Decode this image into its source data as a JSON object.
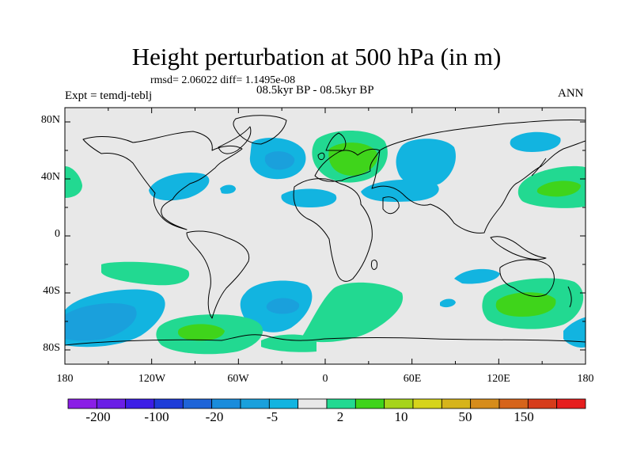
{
  "title": "Height perturbation at 500 hPa (in m)",
  "stats_line": "rmsd= 2.06022  diff= 1.1495e-08",
  "subtitle": "08.5kyr BP - 08.5kyr BP",
  "experiment_label": "Expt = temdj-teblj",
  "season": "ANN",
  "colors": {
    "ocean_background": "#e8e8e8",
    "light_negative": "#12b4e0",
    "mid_negative": "#1aa0dc",
    "light_positive": "#22d991",
    "mid_positive": "#3fd41b"
  },
  "chart_data": {
    "type": "heatmap",
    "variable": "500 hPa height perturbation",
    "units": "m",
    "projection": "cylindrical equidistant",
    "lon_range": [
      -180,
      180
    ],
    "lat_range": [
      -90,
      90
    ],
    "x_ticks": [
      "180",
      "120W",
      "60W",
      "0",
      "60E",
      "120E",
      "180"
    ],
    "y_ticks": [
      "80N",
      "40N",
      "0",
      "40S",
      "80S"
    ],
    "colorbar": {
      "labels": [
        "-200",
        "-100",
        "-20",
        "-5",
        "2",
        "10",
        "50",
        "150"
      ],
      "colors": [
        "#8a1ee6",
        "#6a1ee6",
        "#3c1ee6",
        "#1e3cd8",
        "#1e64d8",
        "#1a8cdc",
        "#1aa0dc",
        "#12b4e0",
        "#e8e8e8",
        "#22d991",
        "#3fd41b",
        "#a6d41b",
        "#d6d41b",
        "#d6b41b",
        "#d68c1b",
        "#d6641b",
        "#d63c1b",
        "#e61e1e"
      ]
    },
    "anomalies": [
      {
        "name": "north-atlantic-low",
        "lon": -40,
        "lat": 48,
        "level": "-5"
      },
      {
        "name": "labrador-low",
        "lon": -75,
        "lat": 35,
        "level": "-5"
      },
      {
        "name": "west-atlantic-small-low",
        "lon": -60,
        "lat": 35,
        "level": "-5"
      },
      {
        "name": "subtropical-atlantic-low",
        "lon": -10,
        "lat": 25,
        "level": "-5"
      },
      {
        "name": "european-high",
        "lon": 15,
        "lat": 52,
        "level": "10"
      },
      {
        "name": "russian-low",
        "lon": 60,
        "lat": 55,
        "level": "-5"
      },
      {
        "name": "central-asian-low",
        "lon": 65,
        "lat": 30,
        "level": "-5"
      },
      {
        "name": "siberian-low",
        "lon": 150,
        "lat": 62,
        "level": "-5"
      },
      {
        "name": "north-pacific-high",
        "lon": 155,
        "lat": 30,
        "level": "10"
      },
      {
        "name": "east-pacific-edge-high",
        "lon": -175,
        "lat": 35,
        "level": "2"
      },
      {
        "name": "south-pacific-low",
        "lon": -150,
        "lat": -60,
        "level": "-5"
      },
      {
        "name": "south-pacific-high-band",
        "lon": -130,
        "lat": -25,
        "level": "2"
      },
      {
        "name": "south-atlantic-low",
        "lon": -30,
        "lat": -50,
        "level": "-5"
      },
      {
        "name": "south-atlantic-high",
        "lon": 20,
        "lat": -50,
        "level": "2"
      },
      {
        "name": "amundsen-sea-high",
        "lon": -95,
        "lat": -75,
        "level": "10"
      },
      {
        "name": "indian-ocean-low",
        "lon": 40,
        "lat": -50,
        "level": "-5"
      },
      {
        "name": "australian-high",
        "lon": 135,
        "lat": -50,
        "level": "10"
      },
      {
        "name": "tasman-low",
        "lon": 175,
        "lat": -70,
        "level": "-5"
      }
    ]
  }
}
